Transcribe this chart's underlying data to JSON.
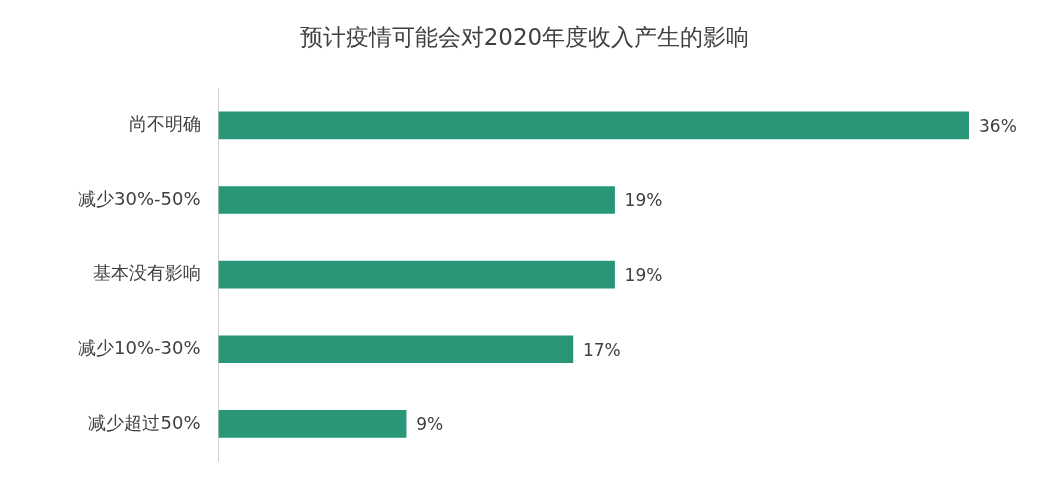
{
  "chart_data": {
    "type": "bar",
    "orientation": "horizontal",
    "title": "预计疫情可能会对2020年度收入产生的影响",
    "categories": [
      "尚不明确",
      "减少30%-50%",
      "基本没有影响",
      "减少10%-30%",
      "减少超过50%"
    ],
    "values": [
      36,
      19,
      19,
      17,
      9
    ],
    "value_labels": [
      "36%",
      "19%",
      "19%",
      "17%",
      "9%"
    ],
    "color": "#2a9678",
    "grid": false,
    "legend": false,
    "tick_labels": "y"
  }
}
